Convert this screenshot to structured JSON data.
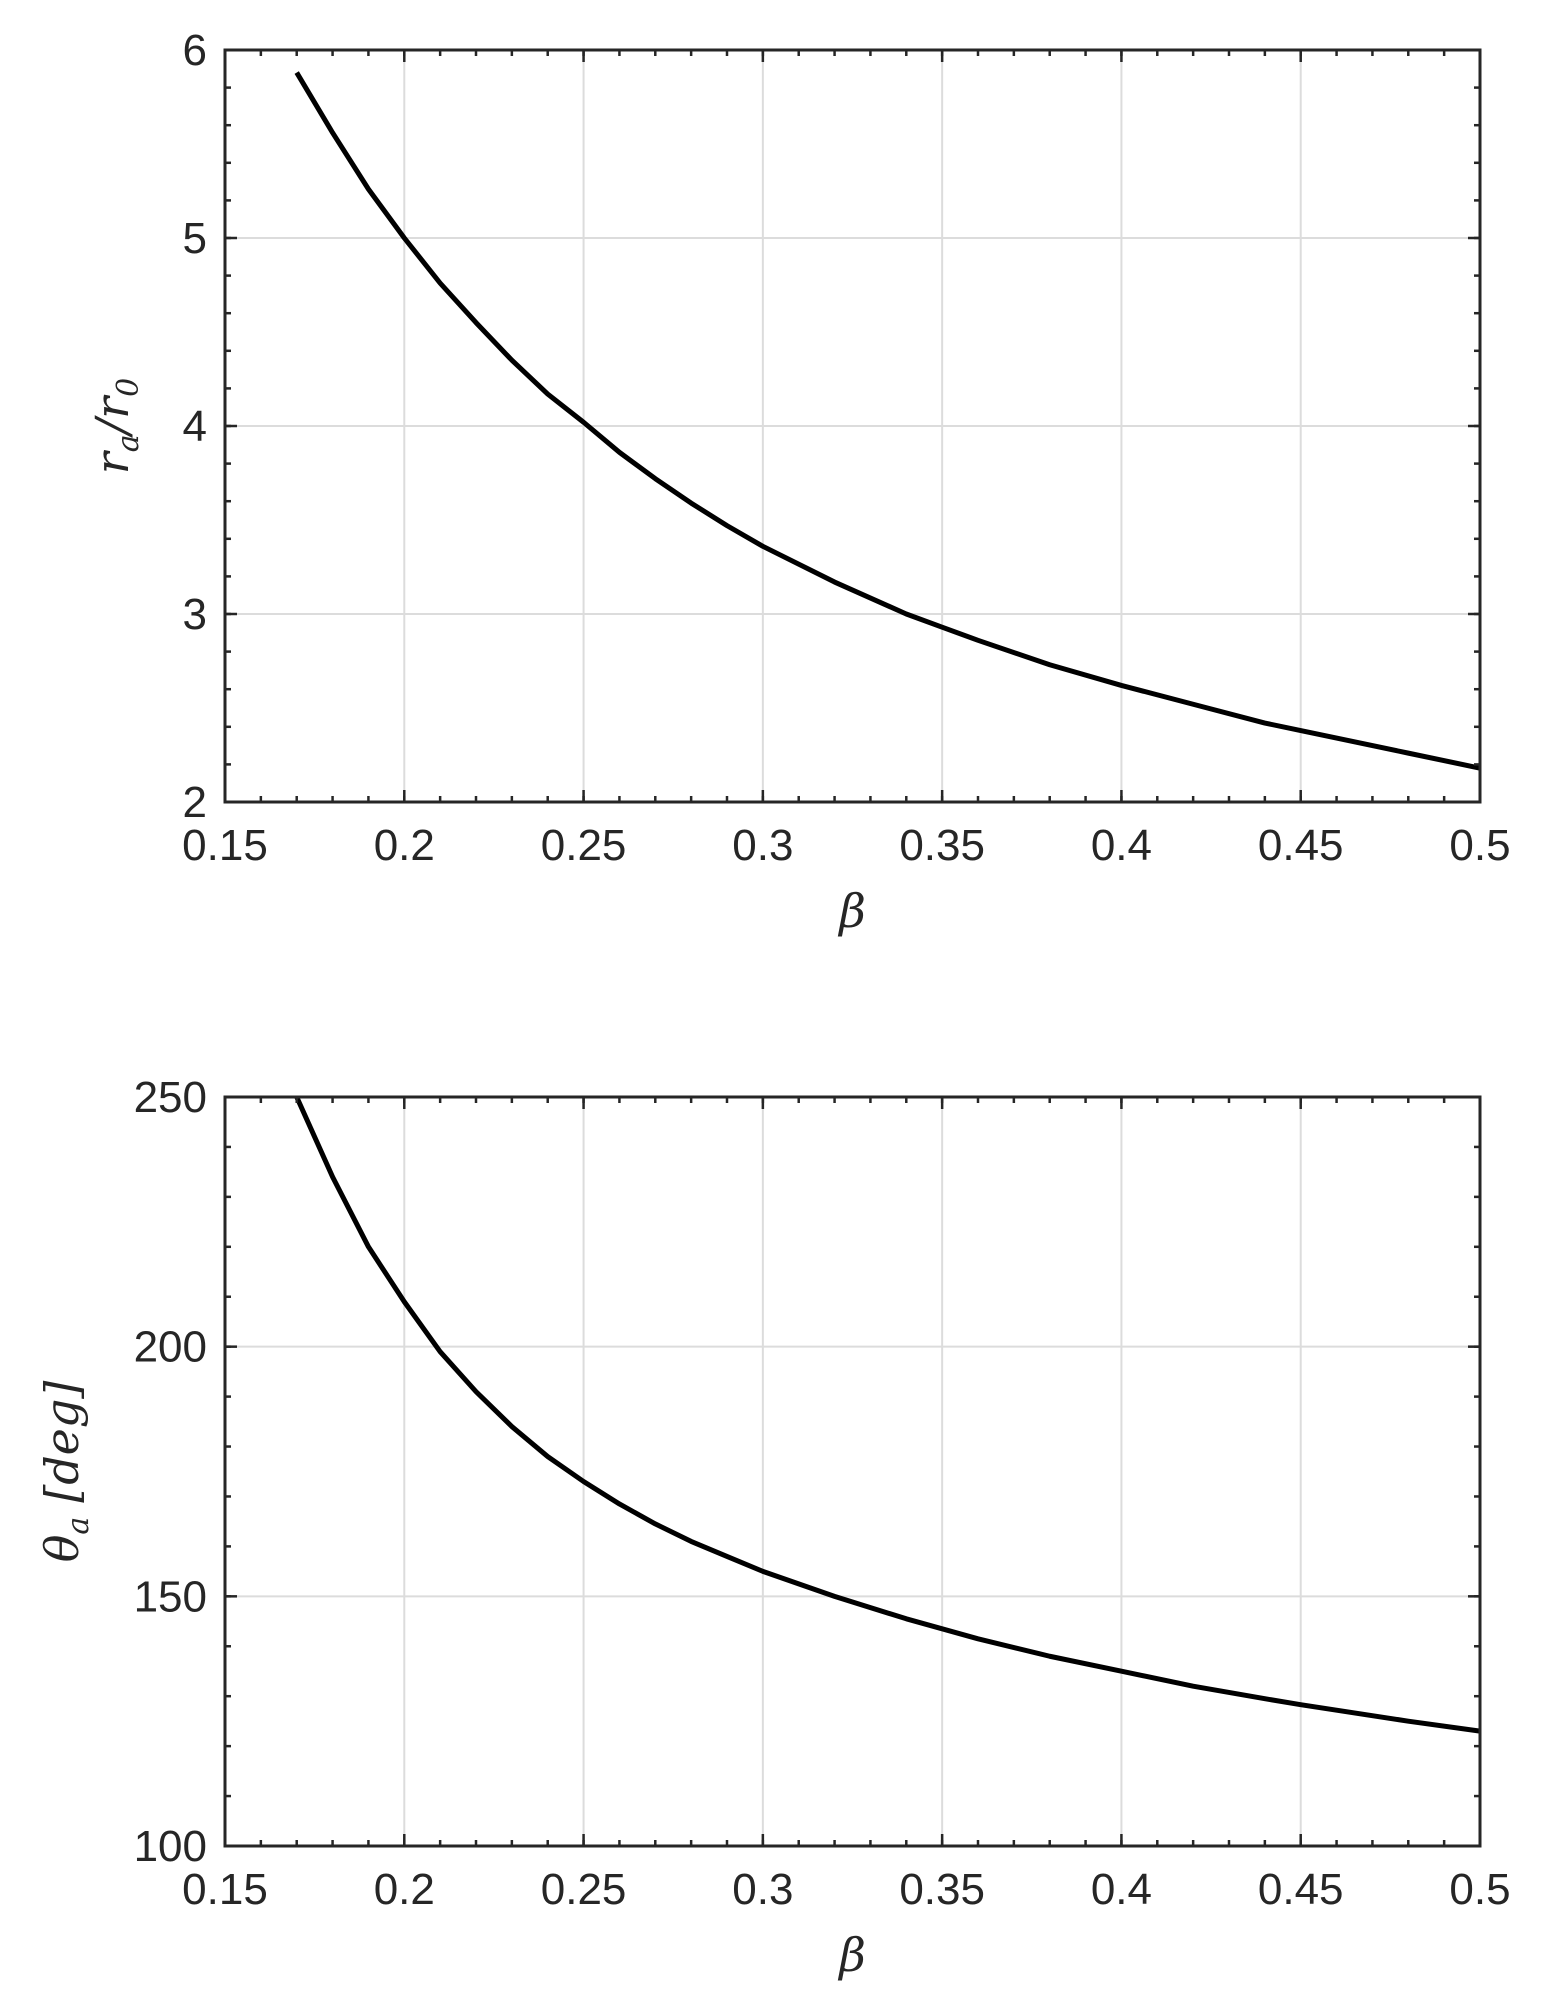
{
  "chart_data": [
    {
      "type": "line",
      "xlabel": "β",
      "ylabel": "r_a/r_0",
      "ylabel_parts": {
        "main": "r",
        "sub1": "a",
        "slash": "/",
        "main2": "r",
        "sub2": "0"
      },
      "xlim": [
        0.15,
        0.5
      ],
      "ylim": [
        2,
        6
      ],
      "xticks": [
        "0.15",
        "0.2",
        "0.25",
        "0.3",
        "0.35",
        "0.4",
        "0.45",
        "0.5"
      ],
      "yticks": [
        "2",
        "3",
        "4",
        "5",
        "6"
      ],
      "grid": true,
      "series": [
        {
          "color": "#000000",
          "x": [
            0.17,
            0.18,
            0.19,
            0.2,
            0.21,
            0.22,
            0.23,
            0.24,
            0.25,
            0.26,
            0.27,
            0.28,
            0.29,
            0.3,
            0.32,
            0.34,
            0.35,
            0.36,
            0.38,
            0.4,
            0.42,
            0.44,
            0.45,
            0.46,
            0.48,
            0.5
          ],
          "y": [
            5.88,
            5.56,
            5.26,
            5.0,
            4.76,
            4.55,
            4.35,
            4.17,
            4.02,
            3.86,
            3.72,
            3.59,
            3.47,
            3.36,
            3.17,
            3.0,
            2.93,
            2.86,
            2.73,
            2.62,
            2.52,
            2.42,
            2.38,
            2.34,
            2.26,
            2.18
          ]
        }
      ]
    },
    {
      "type": "line",
      "xlabel": "β",
      "ylabel": "θ_a [deg]",
      "ylabel_parts": {
        "main": "θ",
        "sub1": "a",
        "unit": "[deg]"
      },
      "xlim": [
        0.15,
        0.5
      ],
      "ylim": [
        100,
        250
      ],
      "xticks": [
        "0.15",
        "0.2",
        "0.25",
        "0.3",
        "0.35",
        "0.4",
        "0.45",
        "0.5"
      ],
      "yticks": [
        "100",
        "150",
        "200",
        "250"
      ],
      "grid": true,
      "series": [
        {
          "color": "#000000",
          "x": [
            0.17,
            0.18,
            0.19,
            0.2,
            0.21,
            0.22,
            0.23,
            0.24,
            0.25,
            0.26,
            0.27,
            0.28,
            0.29,
            0.3,
            0.32,
            0.34,
            0.35,
            0.36,
            0.38,
            0.4,
            0.42,
            0.44,
            0.45,
            0.46,
            0.48,
            0.5
          ],
          "y": [
            250,
            234,
            220,
            209,
            199,
            191,
            184,
            178,
            173,
            168.5,
            164.5,
            161,
            158,
            155,
            150,
            145.5,
            143.5,
            141.5,
            138,
            135,
            132,
            129.5,
            128.3,
            127.2,
            125,
            123
          ]
        }
      ]
    }
  ]
}
